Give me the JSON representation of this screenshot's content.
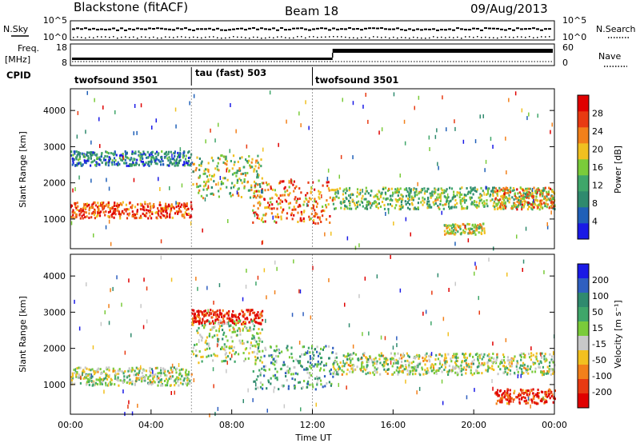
{
  "header": {
    "radar": "Blackstone (fitACF)",
    "beam": "Beam 18",
    "date": "09/Aug/2013"
  },
  "panels": {
    "nsky": {
      "left_label": "N.Sky",
      "right_label": "N.Search",
      "ticks": [
        "10^5",
        "10^0"
      ]
    },
    "freq": {
      "label_line1": "Freq.",
      "label_line2": "[MHz]",
      "left_ticks": [
        "18",
        "8"
      ],
      "right_label": "Nave",
      "right_ticks": [
        "60",
        "0"
      ]
    },
    "cpid": {
      "label": "CPID",
      "segments": [
        {
          "name": "twofsound 3501",
          "start_hour": 0,
          "end_hour": 6
        },
        {
          "name": "tau (fast) 503",
          "start_hour": 6,
          "end_hour": 12
        },
        {
          "name": "twofsound 3501",
          "start_hour": 12,
          "end_hour": 24
        }
      ]
    }
  },
  "chart_data": [
    {
      "type": "heatmap",
      "name": "power",
      "ylabel": "Slant Range [km]",
      "ylim": [
        180,
        4600
      ],
      "yticks": [
        "1000",
        "2000",
        "3000",
        "4000"
      ],
      "xlim": [
        0,
        24
      ],
      "colorbar": {
        "label": "Power [dB]",
        "ticks": [
          "4",
          "8",
          "12",
          "16",
          "20",
          "24",
          "28"
        ],
        "range": [
          0,
          32
        ],
        "colors": [
          "#1a1ae6",
          "#2060b8",
          "#2f8a6e",
          "#3fa66a",
          "#7acb3a",
          "#f0c020",
          "#f2801a",
          "#e83a12",
          "#e00000"
        ]
      },
      "bands": [
        {
          "hours": [
            0,
            6
          ],
          "range_km": [
            1050,
            1500
          ],
          "level": 0.82
        },
        {
          "hours": [
            0,
            6
          ],
          "range_km": [
            2500,
            2900
          ],
          "level": 0.25
        },
        {
          "hours": [
            6,
            9.5
          ],
          "range_km": [
            1600,
            2800
          ],
          "level": 0.5
        },
        {
          "hours": [
            9,
            13
          ],
          "range_km": [
            900,
            2100
          ],
          "level": 0.75
        },
        {
          "hours": [
            13,
            24
          ],
          "range_km": [
            1300,
            1900
          ],
          "level": 0.45
        },
        {
          "hours": [
            18.5,
            20.5
          ],
          "range_km": [
            600,
            900
          ],
          "level": 0.55
        },
        {
          "hours": [
            21,
            24
          ],
          "range_km": [
            1300,
            1900
          ],
          "level": 0.7
        }
      ]
    },
    {
      "type": "heatmap",
      "name": "velocity",
      "ylabel": "Slant Range [km]",
      "ylim": [
        180,
        4600
      ],
      "yticks": [
        "1000",
        "2000",
        "3000",
        "4000"
      ],
      "xlim": [
        0,
        24
      ],
      "xticks": [
        "00:00",
        "04:00",
        "08:00",
        "12:00",
        "16:00",
        "20:00",
        "00:00"
      ],
      "xlabel": "Time UT",
      "colorbar": {
        "label": "Velocity [m s⁻¹]",
        "ticks": [
          "200",
          "100",
          "50",
          "15",
          "-15",
          "-50",
          "-100",
          "-200"
        ],
        "colors": [
          "#1a1ae6",
          "#2f5fc0",
          "#2f8a6e",
          "#3fa66a",
          "#7acb3a",
          "#c8c8c8",
          "#f2c020",
          "#f2801a",
          "#e83a12",
          "#e00000"
        ]
      },
      "bands": [
        {
          "hours": [
            0,
            6
          ],
          "range_km": [
            1000,
            1500
          ],
          "level": 0.5
        },
        {
          "hours": [
            6,
            9.5
          ],
          "range_km": [
            2700,
            3100
          ],
          "level": 0.95
        },
        {
          "hours": [
            6,
            9.5
          ],
          "range_km": [
            1600,
            2800
          ],
          "level": 0.5
        },
        {
          "hours": [
            9,
            13
          ],
          "range_km": [
            900,
            2100
          ],
          "level": 0.35
        },
        {
          "hours": [
            13,
            24
          ],
          "range_km": [
            1300,
            1900
          ],
          "level": 0.5
        },
        {
          "hours": [
            21,
            24
          ],
          "range_km": [
            500,
            900
          ],
          "level": 0.9
        }
      ]
    }
  ]
}
